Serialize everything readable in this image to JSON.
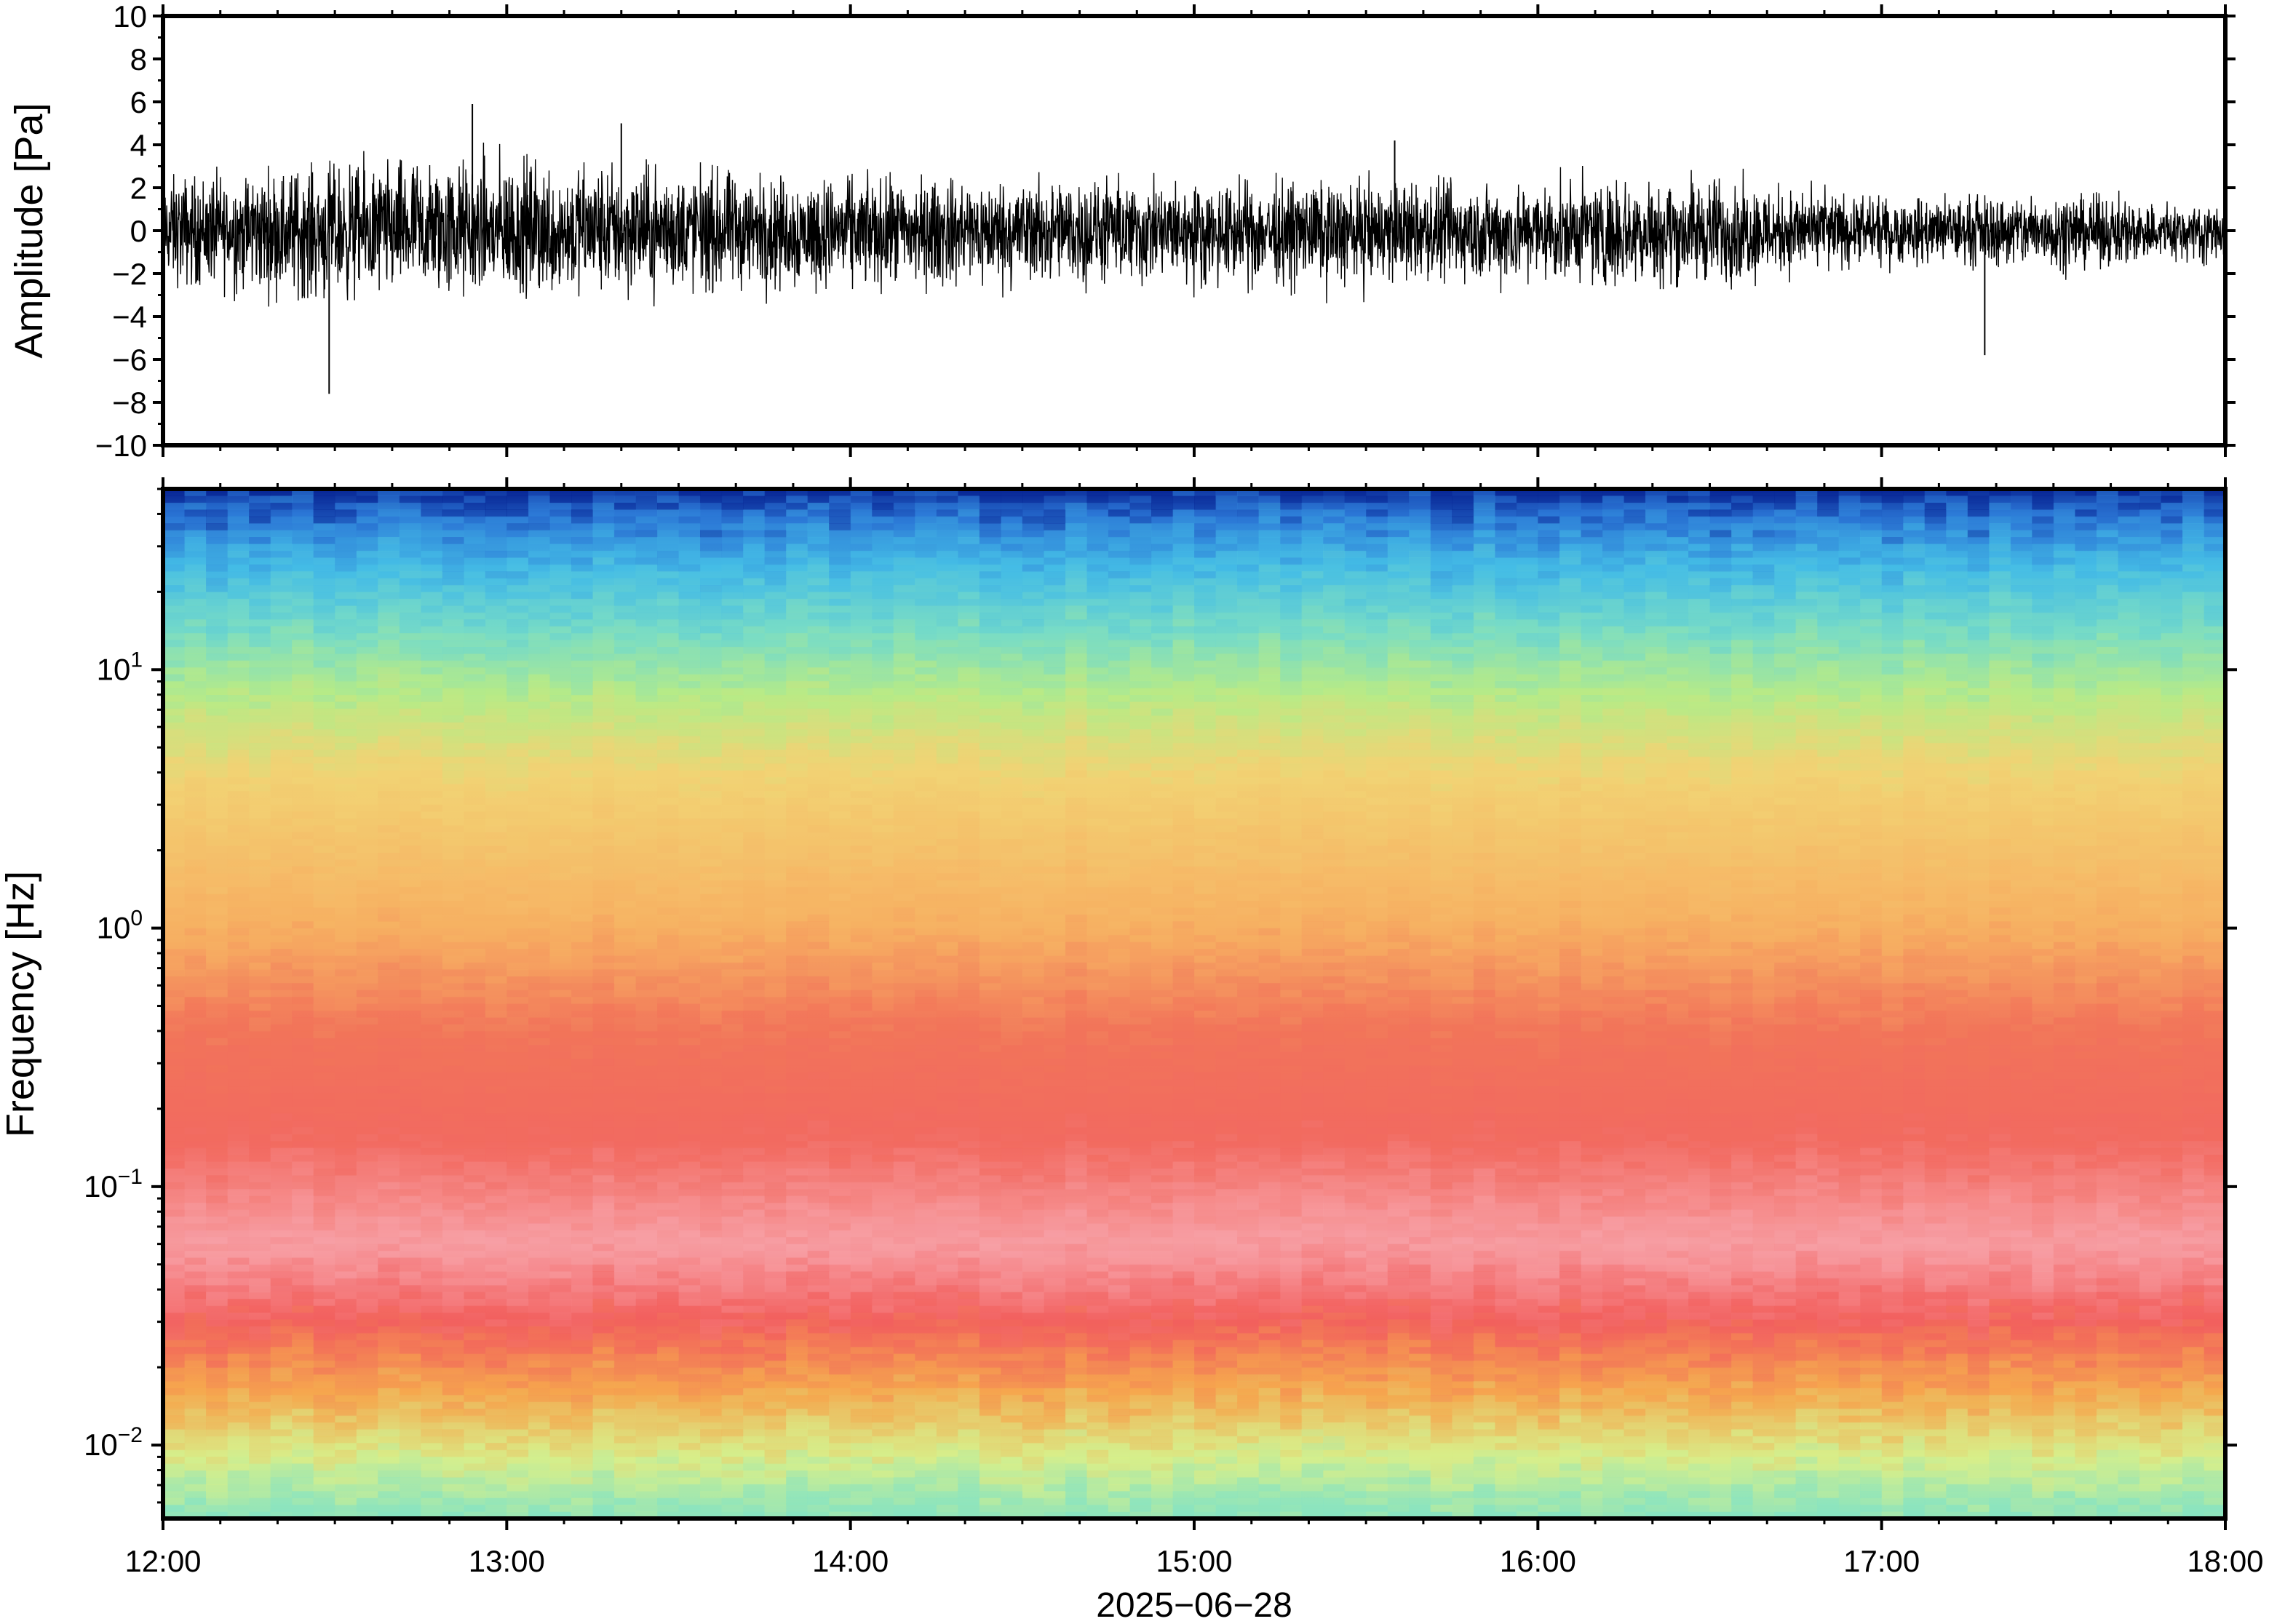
{
  "chart_data": [
    {
      "type": "line",
      "panel": "waveform",
      "ylabel": "Amplitude [Pa]",
      "xlabel": "",
      "ylim": [
        -10,
        10
      ],
      "yticks": [
        -10,
        -8,
        -6,
        -4,
        -2,
        0,
        2,
        4,
        6,
        8,
        10
      ],
      "ytick_labels": [
        "−10",
        "−8",
        "−6",
        "−4",
        "−2",
        "0",
        "2",
        "4",
        "6",
        "8",
        "10"
      ],
      "xlim": [
        "12:00",
        "18:00"
      ],
      "grid": false,
      "series": [
        {
          "color": "#000000",
          "x": [
            "12:00",
            "12:30",
            "13:00",
            "13:30",
            "14:00",
            "14:30",
            "15:00",
            "15:30",
            "16:00",
            "16:30",
            "17:00",
            "17:30",
            "18:00"
          ],
          "envelope_max": [
            3.5,
            4.2,
            4.8,
            4.0,
            3.3,
            3.4,
            3.0,
            3.2,
            3.0,
            3.5,
            2.0,
            2.5,
            1.5
          ],
          "envelope_min": [
            -3.5,
            -4.5,
            -4.5,
            -4.0,
            -3.8,
            -3.6,
            -3.6,
            -3.6,
            -3.5,
            -3.6,
            -2.2,
            -2.5,
            -2.0
          ],
          "peaks": [
            {
              "x": "12:29",
              "y": -7.6
            },
            {
              "x": "12:54",
              "y": 5.9
            },
            {
              "x": "13:20",
              "y": 5.0
            },
            {
              "x": "15:35",
              "y": 4.2
            },
            {
              "x": "17:18",
              "y": -5.8
            }
          ]
        }
      ]
    },
    {
      "type": "heatmap",
      "panel": "spectrogram",
      "ylabel": "Frequency [Hz]",
      "xlabel": "2025−06−28",
      "y_scale": "log",
      "ylim": [
        0.0052,
        50
      ],
      "yticks": [
        0.01,
        0.1,
        1,
        10
      ],
      "ytick_labels": [
        {
          "base": "10",
          "exp": "−2"
        },
        {
          "base": "10",
          "exp": "−1"
        },
        {
          "base": "10",
          "exp": "0"
        },
        {
          "base": "10",
          "exp": "1"
        }
      ],
      "xticks": [
        "12:00",
        "13:00",
        "14:00",
        "15:00",
        "16:00",
        "17:00",
        "18:00"
      ],
      "xlim": [
        "12:00",
        "18:00"
      ],
      "colormap": [
        "#7fdcc8",
        "#d8ef8a",
        "#f5c860",
        "#f49848",
        "#f06060",
        "#f8a8ac",
        "#a8e8f0",
        "#4fc8e8",
        "#2f78d8",
        "#0a2a90"
      ],
      "frequency_color_profile": [
        {
          "freq": 0.0052,
          "color": "#86e3c2"
        },
        {
          "freq": 0.009,
          "color": "#d8ef8a"
        },
        {
          "freq": 0.016,
          "color": "#f5a84e"
        },
        {
          "freq": 0.03,
          "color": "#f25f5d"
        },
        {
          "freq": 0.06,
          "color": "#f7a0a6"
        },
        {
          "freq": 0.15,
          "color": "#f26a60"
        },
        {
          "freq": 0.4,
          "color": "#f2745a"
        },
        {
          "freq": 1.0,
          "color": "#f6b062"
        },
        {
          "freq": 4.0,
          "color": "#f2d374"
        },
        {
          "freq": 8.0,
          "color": "#b8eb86"
        },
        {
          "freq": 14.0,
          "color": "#78dcc6"
        },
        {
          "freq": 25.0,
          "color": "#44bce6"
        },
        {
          "freq": 40.0,
          "color": "#2b76d6"
        },
        {
          "freq": 50.0,
          "color": "#082594"
        }
      ],
      "grid": false
    }
  ]
}
